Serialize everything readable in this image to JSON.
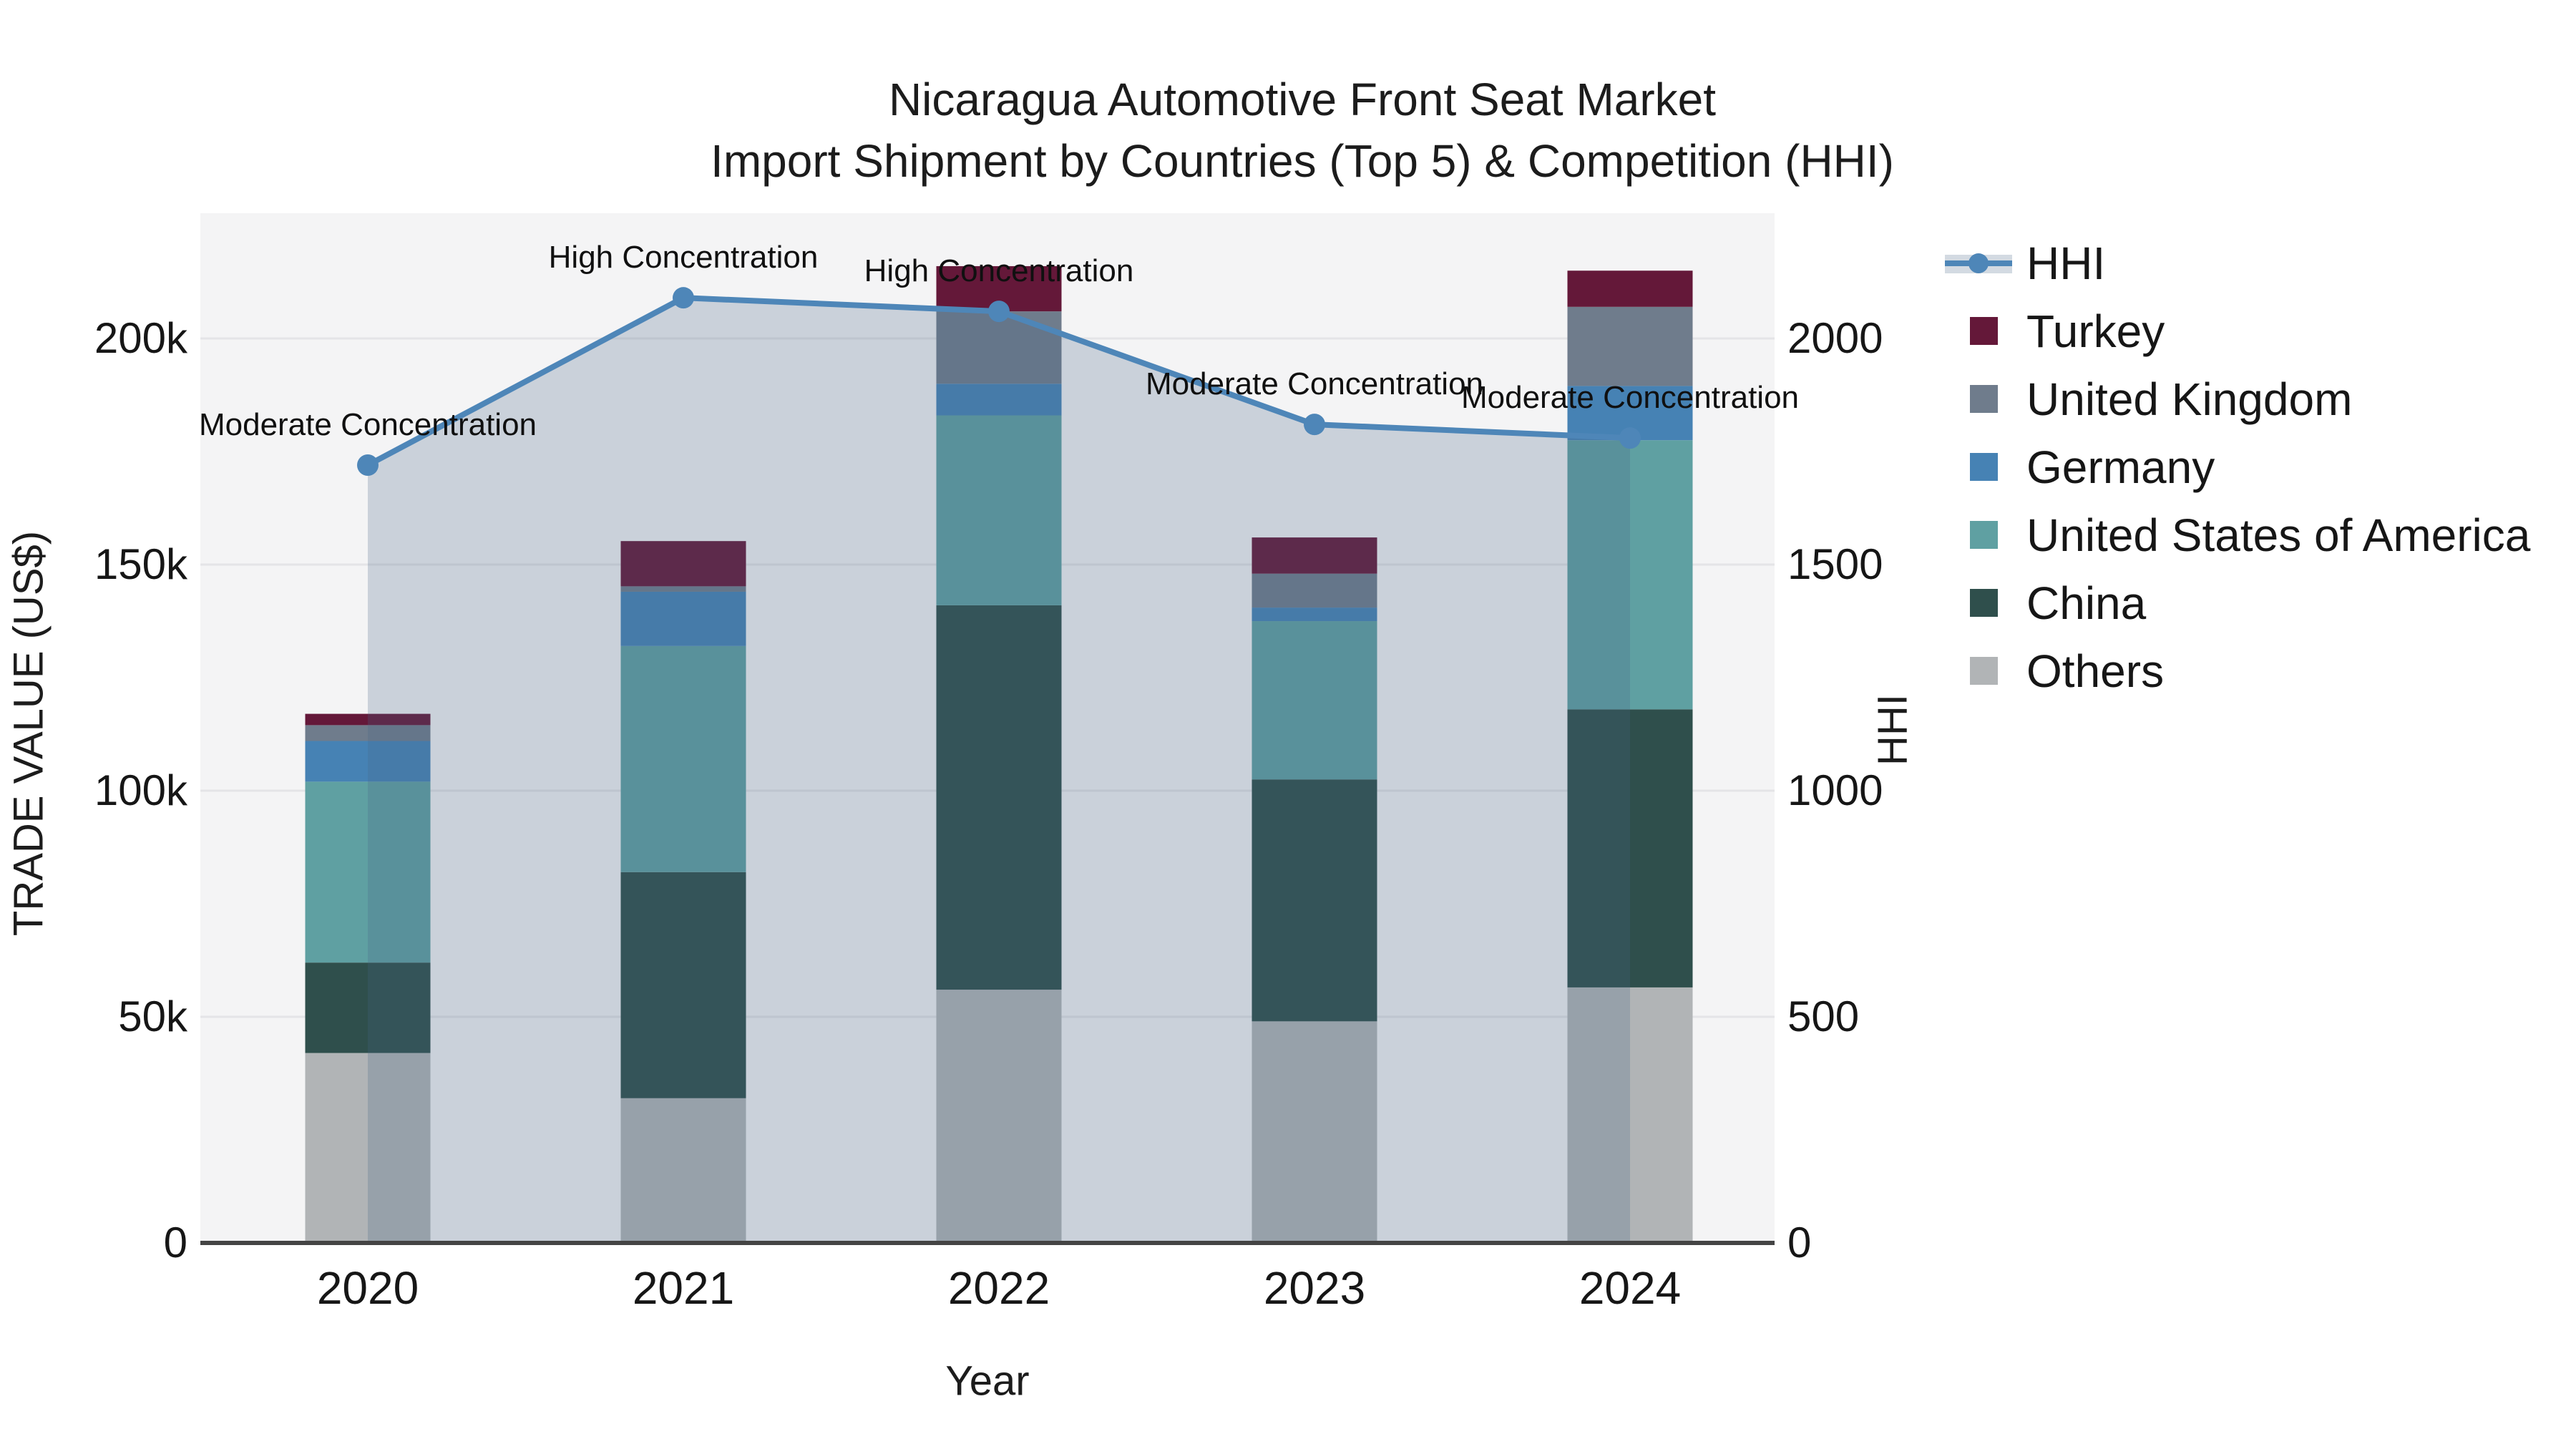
{
  "title": {
    "line1": "Nicaragua Automotive Front Seat Market",
    "line2": "Import Shipment by Countries (Top 5) & Competition (HHI)"
  },
  "axes": {
    "x": {
      "title": "Year",
      "categories": [
        "2020",
        "2021",
        "2022",
        "2023",
        "2024"
      ]
    },
    "y_left": {
      "title": "TRADE VALUE (US$)",
      "tick_labels": [
        "0",
        "50k",
        "100k",
        "150k",
        "200k"
      ],
      "tick_values": [
        0,
        50000,
        100000,
        150000,
        200000
      ],
      "max": 227700
    },
    "y_right": {
      "title": "HHI",
      "tick_labels": [
        "0",
        "500",
        "1000",
        "1500",
        "2000"
      ],
      "tick_values": [
        0,
        500,
        1000,
        1500,
        2000
      ],
      "max": 2277
    }
  },
  "legend": {
    "items": [
      {
        "label": "HHI",
        "swatch": "line",
        "color": "#4e86b8"
      },
      {
        "label": "Turkey",
        "swatch": "square",
        "color": "#641839"
      },
      {
        "label": "United Kingdom",
        "swatch": "square",
        "color": "#6f7c8c"
      },
      {
        "label": "Germany",
        "swatch": "square",
        "color": "#4682b4"
      },
      {
        "label": "United States of America",
        "swatch": "square",
        "color": "#5fa0a2"
      },
      {
        "label": "China",
        "swatch": "square",
        "color": "#2f4f4c"
      },
      {
        "label": "Others",
        "swatch": "square",
        "color": "#b1b4b6"
      }
    ]
  },
  "chart_data": {
    "type": "bar",
    "stacked": true,
    "title": "Nicaragua Automotive Front Seat Market Import Shipment by Countries (Top 5) & Competition (HHI)",
    "xlabel": "Year",
    "ylabel": "TRADE VALUE (US$)",
    "ylabel_right": "HHI",
    "ylim_left": [
      0,
      227700
    ],
    "ylim_right": [
      0,
      2277
    ],
    "grid": "horizontal",
    "legend_position": "right",
    "categories": [
      "2020",
      "2021",
      "2022",
      "2023",
      "2024"
    ],
    "series": [
      {
        "name": "Others",
        "color": "#b1b4b6",
        "values": [
          42000,
          32000,
          56000,
          49000,
          56500
        ]
      },
      {
        "name": "China",
        "color": "#2f4f4c",
        "values": [
          20000,
          50000,
          85000,
          53500,
          61500
        ]
      },
      {
        "name": "United States of America",
        "color": "#5fa0a2",
        "values": [
          40000,
          50000,
          42000,
          35000,
          59500
        ]
      },
      {
        "name": "Germany",
        "color": "#4682b4",
        "values": [
          9000,
          12000,
          7000,
          3000,
          12000
        ]
      },
      {
        "name": "United Kingdom",
        "color": "#6f7c8c",
        "values": [
          3500,
          1200,
          16000,
          7500,
          17500
        ]
      },
      {
        "name": "Turkey",
        "color": "#641839",
        "values": [
          2500,
          10000,
          10000,
          8000,
          8000
        ]
      }
    ],
    "line_series": {
      "name": "HHI",
      "axis": "right",
      "color": "#4e86b8",
      "fill_color": "rgba(73,100,135,0.24)",
      "values": [
        1720,
        2090,
        2060,
        1810,
        1780
      ]
    },
    "annotations": [
      {
        "index": 0,
        "text": "Moderate Concentration"
      },
      {
        "index": 1,
        "text": "High Concentration"
      },
      {
        "index": 2,
        "text": "High Concentration"
      },
      {
        "index": 3,
        "text": "Moderate Concentration"
      },
      {
        "index": 4,
        "text": "Moderate Concentration"
      }
    ]
  },
  "colors": {
    "plot_bg": "#f4f4f5",
    "grid": "#e4e4e7",
    "axis_line": "#444444",
    "text": "#161616"
  }
}
